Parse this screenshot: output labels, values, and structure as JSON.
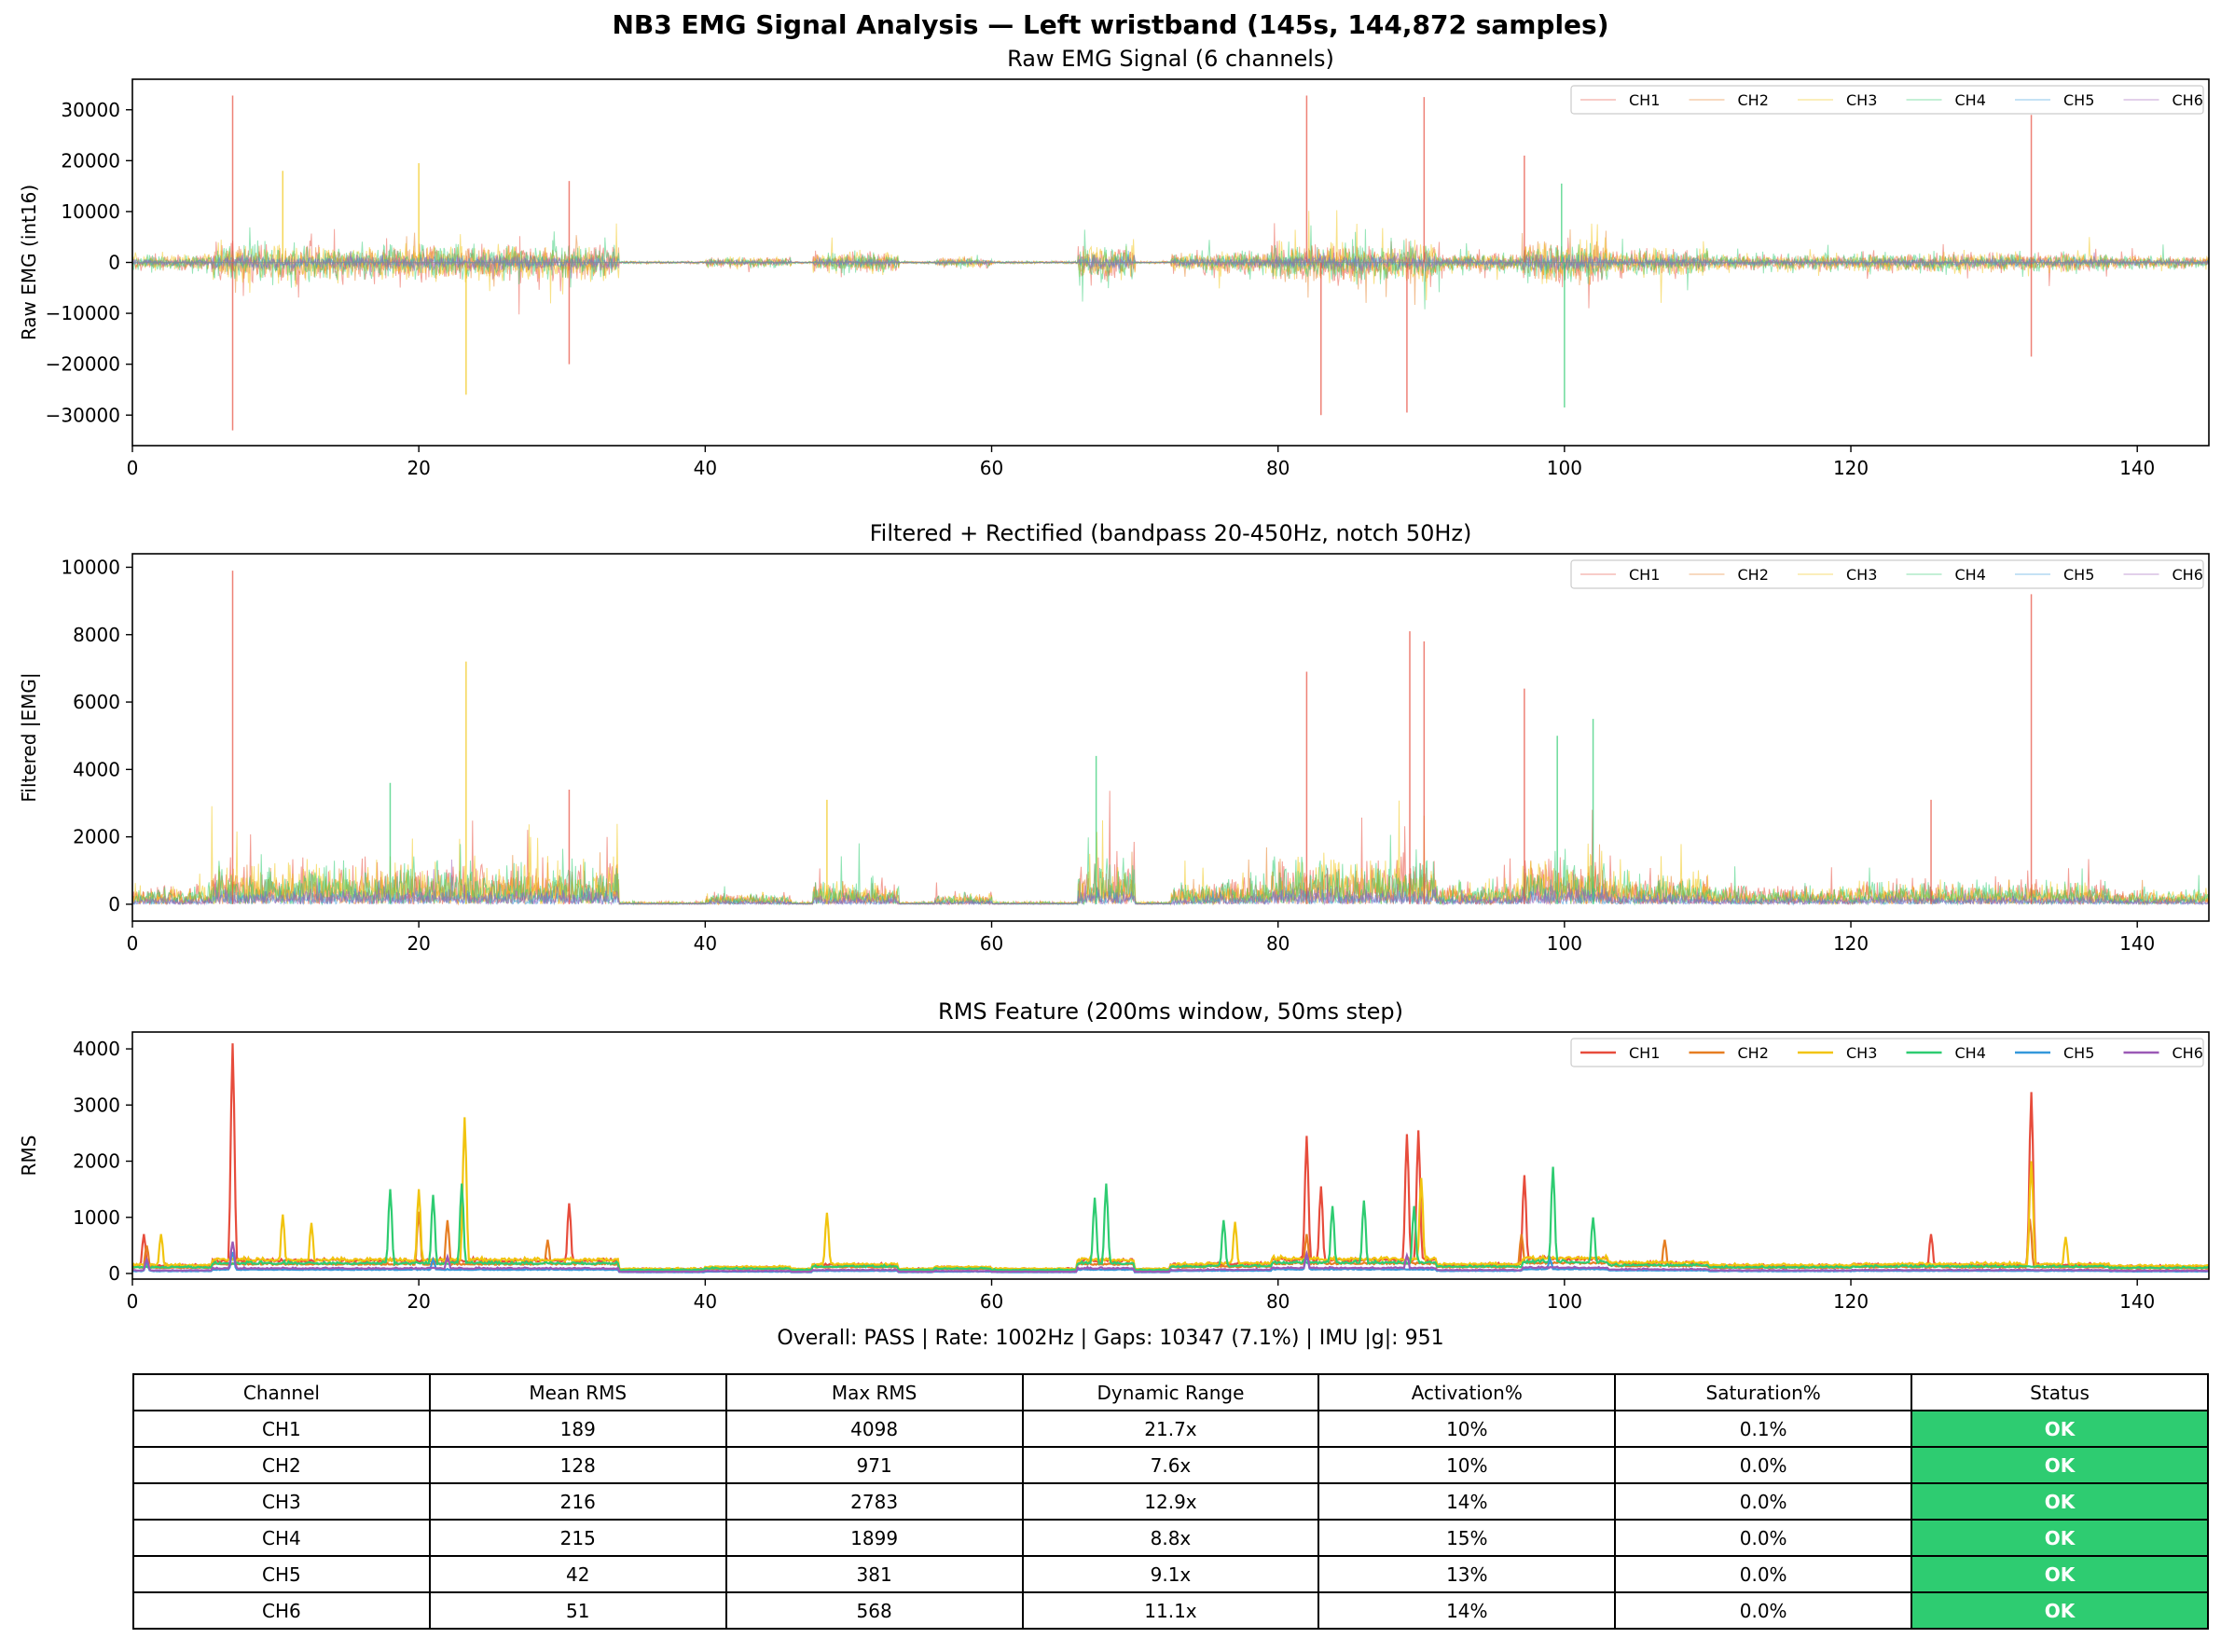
{
  "figure": {
    "suptitle": "NB3 EMG Signal Analysis — Left wristband (145s, 144,872 samples)",
    "summary_line": "Overall: PASS | Rate: 1002Hz | Gaps: 10347 (7.1%) | IMU |g|: 951"
  },
  "colors": {
    "CH1": "#e74c3c",
    "CH2": "#e67e22",
    "CH3": "#f1c40f",
    "CH4": "#2ecc71",
    "CH5": "#3498db",
    "CH6": "#9b59b6",
    "status_ok": "#2ecc71"
  },
  "chart_data": [
    {
      "type": "line",
      "title": "Raw EMG Signal (6 channels)",
      "ylabel": "Raw EMG (int16)",
      "xlabel": "",
      "xlim": [
        0,
        145
      ],
      "ylim": [
        -36000,
        36000
      ],
      "xticks": [
        0,
        20,
        40,
        60,
        80,
        100,
        120,
        140
      ],
      "yticks": [
        -30000,
        -20000,
        -10000,
        0,
        10000,
        20000,
        30000
      ],
      "legend": "top-right",
      "series": [
        {
          "name": "CH1"
        },
        {
          "name": "CH2"
        },
        {
          "name": "CH3"
        },
        {
          "name": "CH4"
        },
        {
          "name": "CH5"
        },
        {
          "name": "CH6"
        }
      ],
      "notable_spikes": [
        {
          "channel": "CH1",
          "x": 7,
          "y": 32800
        },
        {
          "channel": "CH1",
          "x": 7,
          "y": -33000
        },
        {
          "channel": "CH3",
          "x": 10.5,
          "y": 18000
        },
        {
          "channel": "CH3",
          "x": 20,
          "y": 19500
        },
        {
          "channel": "CH3",
          "x": 23.3,
          "y": -26000
        },
        {
          "channel": "CH1",
          "x": 30.5,
          "y": 16000
        },
        {
          "channel": "CH1",
          "x": 30.5,
          "y": -20000
        },
        {
          "channel": "CH1",
          "x": 82,
          "y": 32800
        },
        {
          "channel": "CH1",
          "x": 83,
          "y": -30000
        },
        {
          "channel": "CH1",
          "x": 89,
          "y": -29500
        },
        {
          "channel": "CH1",
          "x": 90.2,
          "y": 32500
        },
        {
          "channel": "CH1",
          "x": 97.2,
          "y": 21000
        },
        {
          "channel": "CH4",
          "x": 99.8,
          "y": 15500
        },
        {
          "channel": "CH4",
          "x": 100,
          "y": -28500
        },
        {
          "channel": "CH1",
          "x": 132.6,
          "y": 29000
        },
        {
          "channel": "CH1",
          "x": 132.6,
          "y": -18500
        }
      ]
    },
    {
      "type": "line",
      "title": "Filtered + Rectified (bandpass 20-450Hz, notch 50Hz)",
      "ylabel": "Filtered |EMG|",
      "xlabel": "",
      "xlim": [
        0,
        145
      ],
      "ylim": [
        -500,
        10400
      ],
      "xticks": [
        0,
        20,
        40,
        60,
        80,
        100,
        120,
        140
      ],
      "yticks": [
        0,
        2000,
        4000,
        6000,
        8000,
        10000
      ],
      "legend": "top-right",
      "series": [
        {
          "name": "CH1"
        },
        {
          "name": "CH2"
        },
        {
          "name": "CH3"
        },
        {
          "name": "CH4"
        },
        {
          "name": "CH5"
        },
        {
          "name": "CH6"
        }
      ],
      "notable_spikes": [
        {
          "channel": "CH1",
          "x": 7,
          "y": 9900
        },
        {
          "channel": "CH3",
          "x": 23.3,
          "y": 7200
        },
        {
          "channel": "CH4",
          "x": 18,
          "y": 3600
        },
        {
          "channel": "CH1",
          "x": 30.5,
          "y": 3400
        },
        {
          "channel": "CH3",
          "x": 48.5,
          "y": 3100
        },
        {
          "channel": "CH4",
          "x": 67.3,
          "y": 4400
        },
        {
          "channel": "CH1",
          "x": 82,
          "y": 6900
        },
        {
          "channel": "CH1",
          "x": 89.2,
          "y": 8100
        },
        {
          "channel": "CH1",
          "x": 90.2,
          "y": 7800
        },
        {
          "channel": "CH1",
          "x": 97.2,
          "y": 6400
        },
        {
          "channel": "CH4",
          "x": 99.5,
          "y": 5000
        },
        {
          "channel": "CH4",
          "x": 102,
          "y": 5500
        },
        {
          "channel": "CH1",
          "x": 125.6,
          "y": 3100
        },
        {
          "channel": "CH1",
          "x": 132.6,
          "y": 9200
        }
      ]
    },
    {
      "type": "line",
      "title": "RMS Feature (200ms window, 50ms step)",
      "ylabel": "RMS",
      "xlabel": "",
      "xlim": [
        0,
        145
      ],
      "ylim": [
        -100,
        4300
      ],
      "xticks": [
        0,
        20,
        40,
        60,
        80,
        100,
        120,
        140
      ],
      "yticks": [
        0,
        1000,
        2000,
        3000,
        4000
      ],
      "legend": "top-right",
      "series": [
        {
          "name": "CH1",
          "peaks": [
            [
              0.8,
              700
            ],
            [
              7,
              4098
            ],
            [
              30.5,
              1250
            ],
            [
              82,
              2450
            ],
            [
              83,
              1550
            ],
            [
              89,
              2480
            ],
            [
              89.8,
              2550
            ],
            [
              97.2,
              1750
            ],
            [
              125.6,
              700
            ],
            [
              132.6,
              3230
            ]
          ]
        },
        {
          "name": "CH2",
          "peaks": [
            [
              1,
              500
            ],
            [
              20,
              1100
            ],
            [
              22,
              950
            ],
            [
              29,
              600
            ],
            [
              82,
              700
            ],
            [
              97,
              700
            ],
            [
              107,
              600
            ],
            [
              132.5,
              971
            ]
          ]
        },
        {
          "name": "CH3",
          "peaks": [
            [
              2,
              700
            ],
            [
              10.5,
              1050
            ],
            [
              12.5,
              900
            ],
            [
              20,
              1500
            ],
            [
              23.2,
              2783
            ],
            [
              48.5,
              1080
            ],
            [
              77,
              920
            ],
            [
              90,
              1700
            ],
            [
              132.6,
              2000
            ],
            [
              135,
              650
            ]
          ]
        },
        {
          "name": "CH4",
          "peaks": [
            [
              18,
              1500
            ],
            [
              21,
              1400
            ],
            [
              23,
              1600
            ],
            [
              67.2,
              1350
            ],
            [
              68,
              1600
            ],
            [
              76.2,
              950
            ],
            [
              83.8,
              1200
            ],
            [
              86,
              1300
            ],
            [
              89.5,
              1200
            ],
            [
              99.2,
              1899
            ],
            [
              102,
              1000
            ]
          ]
        },
        {
          "name": "CH5",
          "peaks": [
            [
              1,
              200
            ],
            [
              7,
              381
            ],
            [
              21,
              250
            ],
            [
              82,
              300
            ],
            [
              99,
              250
            ]
          ]
        },
        {
          "name": "CH6",
          "peaks": [
            [
              1,
              250
            ],
            [
              7,
              568
            ],
            [
              22,
              300
            ],
            [
              82,
              350
            ],
            [
              89,
              320
            ]
          ]
        }
      ]
    }
  ],
  "table": {
    "headers": [
      "Channel",
      "Mean RMS",
      "Max RMS",
      "Dynamic Range",
      "Activation%",
      "Saturation%",
      "Status"
    ],
    "rows": [
      [
        "CH1",
        "189",
        "4098",
        "21.7x",
        "10%",
        "0.1%",
        "OK"
      ],
      [
        "CH2",
        "128",
        "971",
        "7.6x",
        "10%",
        "0.0%",
        "OK"
      ],
      [
        "CH3",
        "216",
        "2783",
        "12.9x",
        "14%",
        "0.0%",
        "OK"
      ],
      [
        "CH4",
        "215",
        "1899",
        "8.8x",
        "15%",
        "0.0%",
        "OK"
      ],
      [
        "CH5",
        "42",
        "381",
        "9.1x",
        "13%",
        "0.0%",
        "OK"
      ],
      [
        "CH6",
        "51",
        "568",
        "11.1x",
        "14%",
        "0.0%",
        "OK"
      ]
    ]
  }
}
